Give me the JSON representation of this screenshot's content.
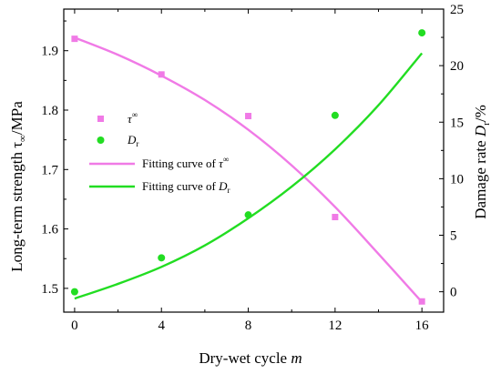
{
  "chart_data": {
    "type": "scatter",
    "x_axis": {
      "label": "Dry-wet cycle",
      "label_var": "m",
      "ticks": [
        0,
        4,
        8,
        12,
        16
      ],
      "range": [
        -0.5,
        17
      ]
    },
    "y_left": {
      "label": "Long-term strength τ∞/MPa",
      "label_main": "Long-term strength τ",
      "label_sub": "∞",
      "label_unit": "/MPa",
      "ticks": [
        "1.5",
        "1.6",
        "1.7",
        "1.8",
        "1.9"
      ],
      "range": [
        1.46,
        1.97
      ]
    },
    "y_right": {
      "label": "Damage rate Dr/%",
      "label_main": "Damage rate ",
      "label_var": "D",
      "label_sub": "r",
      "label_unit": "/%",
      "ticks": [
        "0",
        "5",
        "10",
        "15",
        "20",
        "25"
      ],
      "range": [
        -1.8,
        25
      ]
    },
    "series": [
      {
        "name": "τ∞",
        "legend_var": "τ",
        "legend_sup": "∞",
        "axis": "left",
        "marker": "square",
        "color": "#f07ae6",
        "x": [
          0,
          4,
          8,
          12,
          16
        ],
        "y": [
          1.92,
          1.86,
          1.79,
          1.62,
          1.478
        ]
      },
      {
        "name": "Dr",
        "legend_var": "D",
        "legend_sub": "r",
        "axis": "right",
        "marker": "circle",
        "color": "#22dd22",
        "x": [
          0,
          4,
          8,
          12,
          16
        ],
        "y": [
          0,
          3.0,
          6.8,
          15.6,
          22.9
        ]
      },
      {
        "name": "Fitting curve of τ∞",
        "legend_prefix": "Fitting curve of ",
        "legend_var": "τ",
        "legend_sup": "∞",
        "axis": "left",
        "type": "line",
        "color": "#f07ae6",
        "x": [
          0,
          2,
          4,
          6,
          8,
          10,
          12,
          14,
          16
        ],
        "y": [
          1.922,
          1.893,
          1.858,
          1.817,
          1.767,
          1.707,
          1.637,
          1.558,
          1.477
        ]
      },
      {
        "name": "Fitting curve of Dr",
        "legend_prefix": "Fitting curve of ",
        "legend_var": "D",
        "legend_sub": "r",
        "axis": "right",
        "type": "line",
        "color": "#22dd22",
        "x": [
          0,
          2,
          4,
          6,
          8,
          10,
          12,
          14,
          16
        ],
        "y": [
          -0.6,
          0.7,
          2.2,
          4.1,
          6.5,
          9.3,
          12.6,
          16.5,
          21.1
        ]
      }
    ]
  }
}
